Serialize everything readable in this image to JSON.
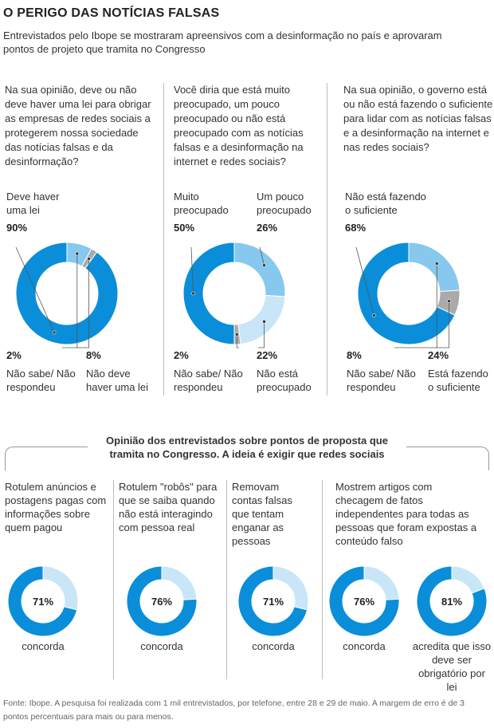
{
  "title": "O PERIGO DAS NOTÍCIAS FALSAS",
  "subtitle": "Entrevistados pelo Ibope se mostraram apreensivos com a desinformação no país e aprovaram pontos de projeto que tramita no Congresso",
  "colors": {
    "dark_blue": "#0a8ed9",
    "mid_blue": "#86c8ee",
    "light_blue": "#c8e6f8",
    "gray": "#aaaaaa"
  },
  "chart_data": [
    {
      "type": "pie",
      "question": "Na sua opinião, deve ou não deve haver uma lei para obrigar as empresas de redes sociais a protegerem nossa sociedade das notícias falsas e da desinformação?",
      "slices": [
        {
          "label": "Deve haver uma lei",
          "value": 90,
          "pct_label": "90%",
          "color": "#0a8ed9"
        },
        {
          "label": "Não deve haver uma lei",
          "value": 8,
          "pct_label": "8%",
          "color": "#86c8ee"
        },
        {
          "label": "Não sabe/ Não respondeu",
          "value": 2,
          "pct_label": "2%",
          "color": "#aaaaaa"
        }
      ]
    },
    {
      "type": "pie",
      "question": "Você diria que está muito preocupado, um pouco preocupado ou não está preocupado com as notícias falsas e a desinformação na internet e redes sociais?",
      "slices": [
        {
          "label": "Muito preocupado",
          "value": 50,
          "pct_label": "50%",
          "color": "#0a8ed9"
        },
        {
          "label": "Um pouco preocupado",
          "value": 26,
          "pct_label": "26%",
          "color": "#86c8ee"
        },
        {
          "label": "Não está preocupado",
          "value": 22,
          "pct_label": "22%",
          "color": "#c8e6f8"
        },
        {
          "label": "Não sabe/ Não respondeu",
          "value": 2,
          "pct_label": "2%",
          "color": "#aaaaaa"
        }
      ]
    },
    {
      "type": "pie",
      "question": "Na sua opinião, o governo está ou não está fazendo o suficiente para lidar com as notícias falsas e a desinformação na internet e nas redes sociais?",
      "slices": [
        {
          "label": "Não está fazendo o suficiente",
          "value": 68,
          "pct_label": "68%",
          "color": "#0a8ed9"
        },
        {
          "label": "Está fazendo o suficiente",
          "value": 24,
          "pct_label": "24%",
          "color": "#86c8ee"
        },
        {
          "label": "Não sabe/ Não respondeu",
          "value": 8,
          "pct_label": "8%",
          "color": "#aaaaaa"
        }
      ]
    },
    {
      "type": "pie",
      "title": "Opinião dos entrevistados sobre pontos de proposta que tramita no Congresso. A ideia é exigir que redes sociais",
      "items": [
        {
          "text": "Rotulem anúncios e postagens pagas com informações sobre quem pagou",
          "value": 71,
          "pct_label": "71%",
          "label": "concorda"
        },
        {
          "text": "Rotulem \"robôs\" para que se saiba quando não está interagindo com pessoa real",
          "value": 76,
          "pct_label": "76%",
          "label": "concorda"
        },
        {
          "text": "Removam contas falsas que tentam enganar as pessoas",
          "value": 71,
          "pct_label": "71%",
          "label": "concorda"
        },
        {
          "text": "Mostrem artigos com checagem de fatos independentes para todas as pessoas que foram expostas a conteúdo falso",
          "value": 76,
          "pct_label": "76%",
          "label": "concorda"
        },
        {
          "text": "",
          "value": 81,
          "pct_label": "81%",
          "label": "acredita que isso deve ser obrigatório por lei"
        }
      ]
    }
  ],
  "footer": "Fonte: Ibope. A pesquisa foi realizada com 1 mil entrevistados, por telefone, entre 28 e 29 de maio. A margem de erro é de 3 pontos percentuais para mais ou para menos."
}
